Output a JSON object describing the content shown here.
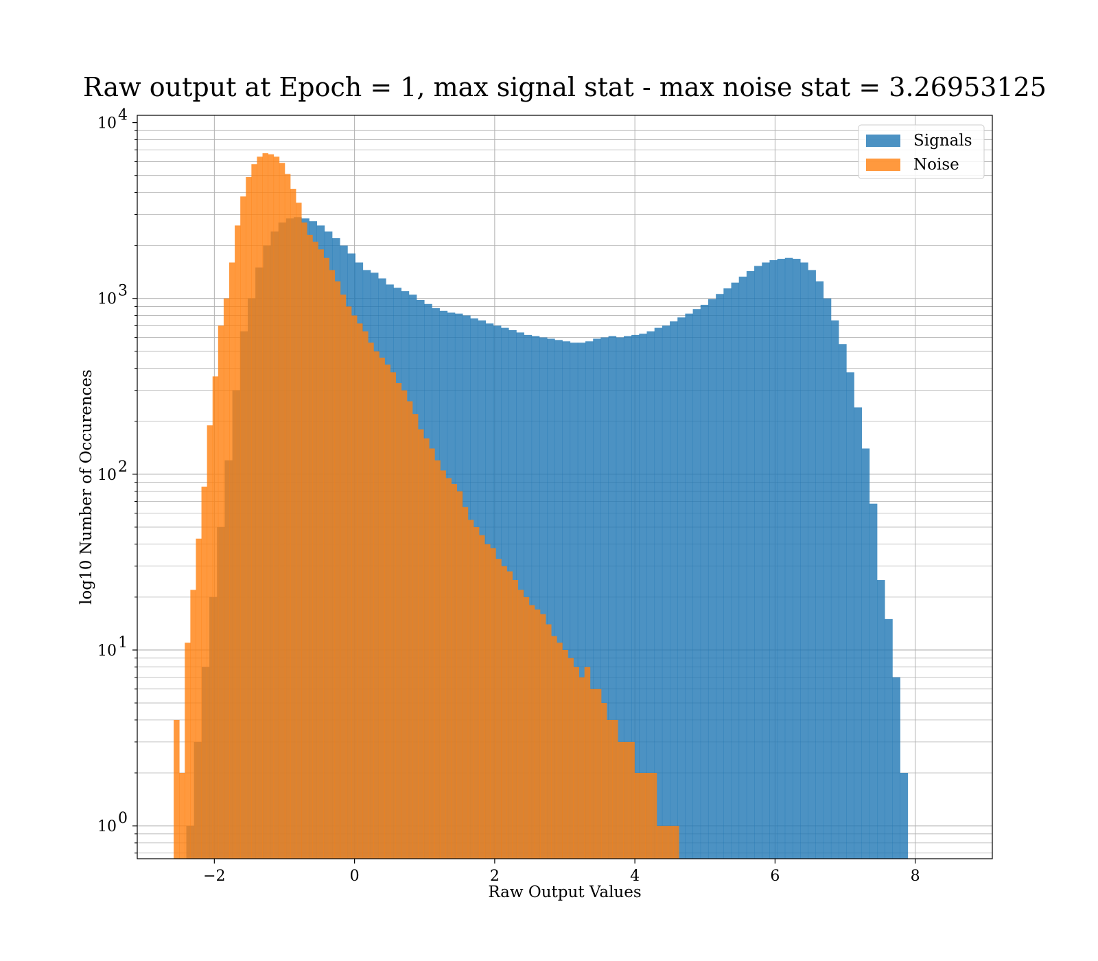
{
  "chart_data": {
    "type": "bar",
    "subtype": "histogram",
    "title": "Raw output at Epoch = 1, max signal stat - max noise stat = 3.26953125",
    "xlabel": "Raw Output Values",
    "ylabel": "log10 Number of Occurences",
    "xlim": [
      -3.1,
      9.1
    ],
    "ylim": [
      0.65,
      11000
    ],
    "yscale": "log",
    "grid": true,
    "legend_position": "top-right",
    "x_ticks": [
      {
        "value": -2,
        "label": "−2"
      },
      {
        "value": 0,
        "label": "0"
      },
      {
        "value": 2,
        "label": "2"
      },
      {
        "value": 4,
        "label": "4"
      },
      {
        "value": 6,
        "label": "6"
      },
      {
        "value": 8,
        "label": "8"
      }
    ],
    "y_ticks": [
      {
        "value": 1,
        "base": "10",
        "exp": "0"
      },
      {
        "value": 10,
        "base": "10",
        "exp": "1"
      },
      {
        "value": 100,
        "base": "10",
        "exp": "2"
      },
      {
        "value": 1000,
        "base": "10",
        "exp": "3"
      },
      {
        "value": 10000,
        "base": "10",
        "exp": "4"
      }
    ],
    "series": [
      {
        "name": "Signals",
        "color": "#1f77b4",
        "alpha": 0.8,
        "bin_start": -2.4,
        "bin_width": 0.1095,
        "values": [
          1,
          3,
          8,
          20,
          50,
          120,
          300,
          650,
          1000,
          1500,
          2000,
          2400,
          2700,
          2850,
          2900,
          2850,
          2750,
          2600,
          2400,
          2200,
          2000,
          1800,
          1600,
          1450,
          1400,
          1300,
          1200,
          1150,
          1100,
          1050,
          980,
          930,
          880,
          850,
          830,
          820,
          800,
          770,
          750,
          720,
          700,
          680,
          660,
          640,
          620,
          610,
          600,
          590,
          580,
          570,
          560,
          560,
          570,
          590,
          600,
          610,
          600,
          610,
          620,
          630,
          650,
          680,
          700,
          740,
          780,
          820,
          870,
          920,
          990,
          1060,
          1140,
          1230,
          1330,
          1430,
          1530,
          1600,
          1650,
          1680,
          1700,
          1680,
          1600,
          1450,
          1250,
          1000,
          750,
          550,
          380,
          240,
          140,
          68,
          25,
          15,
          7,
          2
        ]
      },
      {
        "name": "Noise",
        "color": "#ff7f0e",
        "alpha": 0.8,
        "bin_start": -2.58,
        "bin_width": 0.0792,
        "values": [
          4,
          2,
          11,
          22,
          43,
          85,
          190,
          360,
          700,
          1000,
          1600,
          2600,
          3800,
          4900,
          5800,
          6400,
          6700,
          6600,
          6400,
          5900,
          5100,
          4200,
          3500,
          2700,
          2300,
          2100,
          1900,
          1700,
          1450,
          1250,
          1050,
          900,
          800,
          720,
          650,
          560,
          500,
          460,
          420,
          380,
          330,
          300,
          260,
          220,
          180,
          160,
          140,
          120,
          105,
          95,
          88,
          80,
          65,
          55,
          50,
          45,
          40,
          38,
          33,
          30,
          28,
          25,
          22,
          20,
          18,
          17,
          16,
          14,
          12,
          11,
          10,
          9,
          8,
          7,
          8,
          6,
          6,
          5,
          4,
          4,
          3,
          3,
          3,
          2,
          2,
          2,
          2,
          1,
          1,
          1,
          1
        ]
      }
    ]
  }
}
